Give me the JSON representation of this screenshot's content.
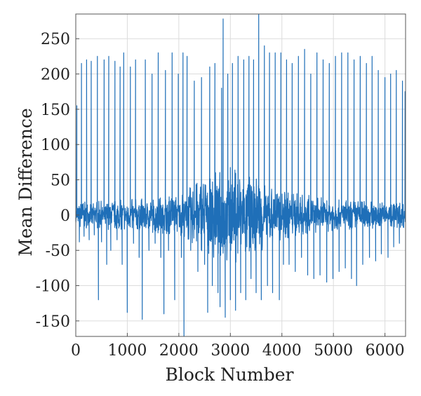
{
  "chart_data": {
    "type": "line",
    "title": "",
    "xlabel": "Block Number",
    "ylabel": "Mean Difference",
    "xlim": [
      0,
      6400
    ],
    "ylim": [
      -172,
      285
    ],
    "xticks": [
      0,
      1000,
      2000,
      3000,
      4000,
      5000,
      6000
    ],
    "yticks": [
      -150,
      -100,
      -50,
      0,
      50,
      100,
      150,
      200,
      250
    ],
    "grid": true,
    "legend": "none",
    "colors": {
      "series": "#1f6fb8",
      "grid": "#dcdcdc",
      "axis": "#555555",
      "text": "#222222"
    },
    "series": [
      {
        "color": "#1f6fb8",
        "spikes": [
          {
            "x": 20,
            "y": 155
          },
          {
            "x": 70,
            "y": -38
          },
          {
            "x": 110,
            "y": 215
          },
          {
            "x": 160,
            "y": -30
          },
          {
            "x": 210,
            "y": 220
          },
          {
            "x": 260,
            "y": -35
          },
          {
            "x": 300,
            "y": 218
          },
          {
            "x": 360,
            "y": -28
          },
          {
            "x": 420,
            "y": 225
          },
          {
            "x": 440,
            "y": -120
          },
          {
            "x": 500,
            "y": -38
          },
          {
            "x": 550,
            "y": 220
          },
          {
            "x": 600,
            "y": -70
          },
          {
            "x": 640,
            "y": 225
          },
          {
            "x": 680,
            "y": -50
          },
          {
            "x": 760,
            "y": 218
          },
          {
            "x": 800,
            "y": -35
          },
          {
            "x": 860,
            "y": 210
          },
          {
            "x": 900,
            "y": -70
          },
          {
            "x": 930,
            "y": 230
          },
          {
            "x": 1000,
            "y": -138
          },
          {
            "x": 1060,
            "y": 210
          },
          {
            "x": 1120,
            "y": -40
          },
          {
            "x": 1160,
            "y": 220
          },
          {
            "x": 1230,
            "y": -60
          },
          {
            "x": 1290,
            "y": -148
          },
          {
            "x": 1350,
            "y": 220
          },
          {
            "x": 1420,
            "y": -50
          },
          {
            "x": 1480,
            "y": 200
          },
          {
            "x": 1540,
            "y": -40
          },
          {
            "x": 1600,
            "y": 230
          },
          {
            "x": 1650,
            "y": -60
          },
          {
            "x": 1710,
            "y": -140
          },
          {
            "x": 1740,
            "y": 205
          },
          {
            "x": 1800,
            "y": -50
          },
          {
            "x": 1870,
            "y": 230
          },
          {
            "x": 1920,
            "y": -120
          },
          {
            "x": 1990,
            "y": 200
          },
          {
            "x": 2050,
            "y": -60
          },
          {
            "x": 2080,
            "y": 230
          },
          {
            "x": 2100,
            "y": -172
          },
          {
            "x": 2160,
            "y": 225
          },
          {
            "x": 2230,
            "y": -50
          },
          {
            "x": 2300,
            "y": 190
          },
          {
            "x": 2370,
            "y": -80
          },
          {
            "x": 2440,
            "y": 195
          },
          {
            "x": 2500,
            "y": -70
          },
          {
            "x": 2560,
            "y": -138
          },
          {
            "x": 2600,
            "y": 210
          },
          {
            "x": 2650,
            "y": -100
          },
          {
            "x": 2700,
            "y": 215
          },
          {
            "x": 2760,
            "y": -110
          },
          {
            "x": 2800,
            "y": -130
          },
          {
            "x": 2830,
            "y": 180
          },
          {
            "x": 2860,
            "y": 278
          },
          {
            "x": 2900,
            "y": -145
          },
          {
            "x": 2950,
            "y": 200
          },
          {
            "x": 3000,
            "y": -120
          },
          {
            "x": 3040,
            "y": 215
          },
          {
            "x": 3100,
            "y": -135
          },
          {
            "x": 3150,
            "y": 225
          },
          {
            "x": 3200,
            "y": -110
          },
          {
            "x": 3260,
            "y": 220
          },
          {
            "x": 3300,
            "y": -120
          },
          {
            "x": 3360,
            "y": 225
          },
          {
            "x": 3400,
            "y": -90
          },
          {
            "x": 3450,
            "y": 220
          },
          {
            "x": 3500,
            "y": -110
          },
          {
            "x": 3550,
            "y": 285
          },
          {
            "x": 3600,
            "y": -120
          },
          {
            "x": 3660,
            "y": 240
          },
          {
            "x": 3720,
            "y": -100
          },
          {
            "x": 3760,
            "y": 230
          },
          {
            "x": 3820,
            "y": -110
          },
          {
            "x": 3870,
            "y": 230
          },
          {
            "x": 3950,
            "y": -120
          },
          {
            "x": 3980,
            "y": 230
          },
          {
            "x": 4030,
            "y": -70
          },
          {
            "x": 4090,
            "y": 220
          },
          {
            "x": 4140,
            "y": -70
          },
          {
            "x": 4200,
            "y": 215
          },
          {
            "x": 4260,
            "y": -80
          },
          {
            "x": 4320,
            "y": 225
          },
          {
            "x": 4380,
            "y": -60
          },
          {
            "x": 4440,
            "y": 235
          },
          {
            "x": 4500,
            "y": -85
          },
          {
            "x": 4560,
            "y": 200
          },
          {
            "x": 4620,
            "y": -90
          },
          {
            "x": 4680,
            "y": 230
          },
          {
            "x": 4740,
            "y": -85
          },
          {
            "x": 4800,
            "y": 220
          },
          {
            "x": 4870,
            "y": -95
          },
          {
            "x": 4920,
            "y": 215
          },
          {
            "x": 4990,
            "y": -90
          },
          {
            "x": 5040,
            "y": 225
          },
          {
            "x": 5110,
            "y": -80
          },
          {
            "x": 5160,
            "y": 230
          },
          {
            "x": 5230,
            "y": -75
          },
          {
            "x": 5280,
            "y": 230
          },
          {
            "x": 5350,
            "y": -90
          },
          {
            "x": 5400,
            "y": 220
          },
          {
            "x": 5450,
            "y": -100
          },
          {
            "x": 5520,
            "y": 225
          },
          {
            "x": 5570,
            "y": -70
          },
          {
            "x": 5640,
            "y": 215
          },
          {
            "x": 5700,
            "y": -60
          },
          {
            "x": 5750,
            "y": 225
          },
          {
            "x": 5820,
            "y": -65
          },
          {
            "x": 5870,
            "y": 205
          },
          {
            "x": 5930,
            "y": -55
          },
          {
            "x": 6000,
            "y": 195
          },
          {
            "x": 6060,
            "y": -60
          },
          {
            "x": 6110,
            "y": 200
          },
          {
            "x": 6170,
            "y": -45
          },
          {
            "x": 6220,
            "y": 205
          },
          {
            "x": 6280,
            "y": -40
          },
          {
            "x": 6340,
            "y": 190
          },
          {
            "x": 6390,
            "y": 175
          }
        ],
        "noise_envelope": [
          {
            "x": 0,
            "amp": 18
          },
          {
            "x": 1000,
            "amp": 22
          },
          {
            "x": 2000,
            "amp": 28
          },
          {
            "x": 2600,
            "amp": 60
          },
          {
            "x": 3000,
            "amp": 70
          },
          {
            "x": 3500,
            "amp": 55
          },
          {
            "x": 4000,
            "amp": 35
          },
          {
            "x": 5000,
            "amp": 22
          },
          {
            "x": 6400,
            "amp": 18
          }
        ]
      }
    ]
  }
}
